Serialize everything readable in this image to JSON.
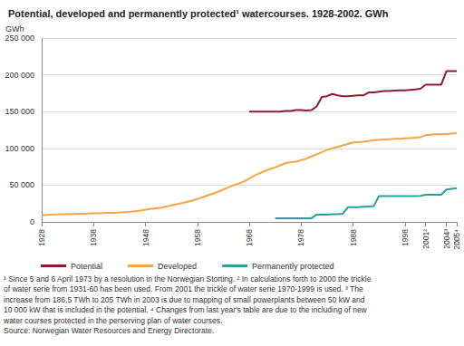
{
  "chart_data": {
    "type": "line",
    "title": "Potential, developed and permanently protected¹ watercourses. 1928-2002. GWh",
    "ylabel": "GWh",
    "categories": [
      "1928",
      null,
      null,
      null,
      null,
      null,
      null,
      null,
      null,
      null,
      "1938",
      null,
      null,
      null,
      null,
      null,
      null,
      null,
      null,
      null,
      "1948",
      null,
      null,
      null,
      null,
      null,
      null,
      null,
      null,
      null,
      "1958",
      null,
      null,
      null,
      null,
      null,
      null,
      null,
      null,
      null,
      "1968",
      null,
      null,
      null,
      null,
      null,
      null,
      null,
      null,
      null,
      "1978",
      null,
      null,
      null,
      null,
      null,
      null,
      null,
      null,
      null,
      "1988",
      null,
      null,
      null,
      null,
      null,
      null,
      null,
      null,
      null,
      "1998",
      null,
      null,
      null,
      "2001²",
      null,
      null,
      null,
      "2004³",
      null,
      "2005⁴"
    ],
    "series": [
      {
        "name": "Potential",
        "color": "#8c1c2c",
        "values": [
          null,
          null,
          null,
          null,
          null,
          null,
          null,
          null,
          null,
          null,
          null,
          null,
          null,
          null,
          null,
          null,
          null,
          null,
          null,
          null,
          null,
          null,
          null,
          null,
          null,
          null,
          null,
          null,
          null,
          null,
          null,
          null,
          null,
          null,
          null,
          null,
          null,
          null,
          null,
          null,
          150000,
          150000,
          150000,
          150000,
          150000,
          150000,
          150000,
          151000,
          151000,
          152000,
          152000,
          151500,
          152000,
          157000,
          170000,
          171000,
          174000,
          172000,
          171000,
          171000,
          171500,
          172000,
          172000,
          176000,
          176000,
          177000,
          178000,
          178000,
          178500,
          179000,
          179000,
          179500,
          180000,
          181000,
          186500,
          186500,
          186500,
          186500,
          205000,
          205000,
          205000
        ]
      },
      {
        "name": "Developed",
        "color": "#f5a447",
        "values": [
          9000,
          9500,
          10000,
          10200,
          10400,
          10600,
          10800,
          11000,
          11200,
          11400,
          11600,
          11800,
          12000,
          12200,
          12400,
          12800,
          13200,
          13800,
          14500,
          15500,
          16500,
          17500,
          18500,
          19500,
          21000,
          22500,
          24000,
          25500,
          27000,
          29000,
          31000,
          33500,
          36000,
          38500,
          41000,
          44000,
          47000,
          50000,
          52000,
          55000,
          59000,
          63000,
          66000,
          69000,
          72000,
          74000,
          77000,
          80000,
          81000,
          82000,
          84000,
          86000,
          89000,
          92000,
          95000,
          98000,
          100000,
          102000,
          104000,
          106000,
          108000,
          108500,
          109000,
          110000,
          111000,
          111500,
          112000,
          112500,
          113000,
          113000,
          113500,
          114000,
          114500,
          115000,
          118000,
          118500,
          119000,
          119000,
          119500,
          120000,
          121000
        ]
      },
      {
        "name": "Permanently protected",
        "color": "#26a09c",
        "values": [
          null,
          null,
          null,
          null,
          null,
          null,
          null,
          null,
          null,
          null,
          null,
          null,
          null,
          null,
          null,
          null,
          null,
          null,
          null,
          null,
          null,
          null,
          null,
          null,
          null,
          null,
          null,
          null,
          null,
          null,
          null,
          null,
          null,
          null,
          null,
          null,
          null,
          null,
          null,
          null,
          null,
          null,
          null,
          null,
          null,
          5000,
          5000,
          5000,
          5000,
          5000,
          5000,
          5000,
          5000,
          10000,
          10000,
          10000,
          10500,
          10500,
          11000,
          20000,
          20000,
          20000,
          20500,
          21000,
          21500,
          35000,
          35000,
          35000,
          35000,
          35000,
          35000,
          35000,
          35000,
          35500,
          37000,
          37000,
          37000,
          37000,
          44000,
          45000,
          46000
        ]
      }
    ],
    "ylim": [
      0,
      250000
    ],
    "yticks": [
      0,
      {
        "value": 50000,
        "label": "50 000"
      },
      {
        "value": 100000,
        "label": "100 000"
      },
      {
        "value": 150000,
        "label": "150 000"
      },
      {
        "value": 200000,
        "label": "200 000"
      },
      {
        "value": 250000,
        "label": "250 000"
      }
    ],
    "grid": true,
    "legend": "bottom",
    "notes": [
      "¹ Since 5 and 6 April 1973 by a resolution in the Norwegian Storting. ² In calculations forth to 2000 the trickle",
      "of water serie from 1931-60 has been used. From 2001 the trickle of water serie 1970-1999 is used. ³ The",
      "increase from 186,5 TWh to 205 TWh in 2003 is due to mapping of small powerplants between 50 kW and",
      "10 000 kW that is included in the potential. ⁴ Changes from last year's table are due to the including of new",
      "water courses protected in the perserving plan of water courses."
    ],
    "source": "Source: Norwegian Water Resources and Energy Directorate."
  }
}
